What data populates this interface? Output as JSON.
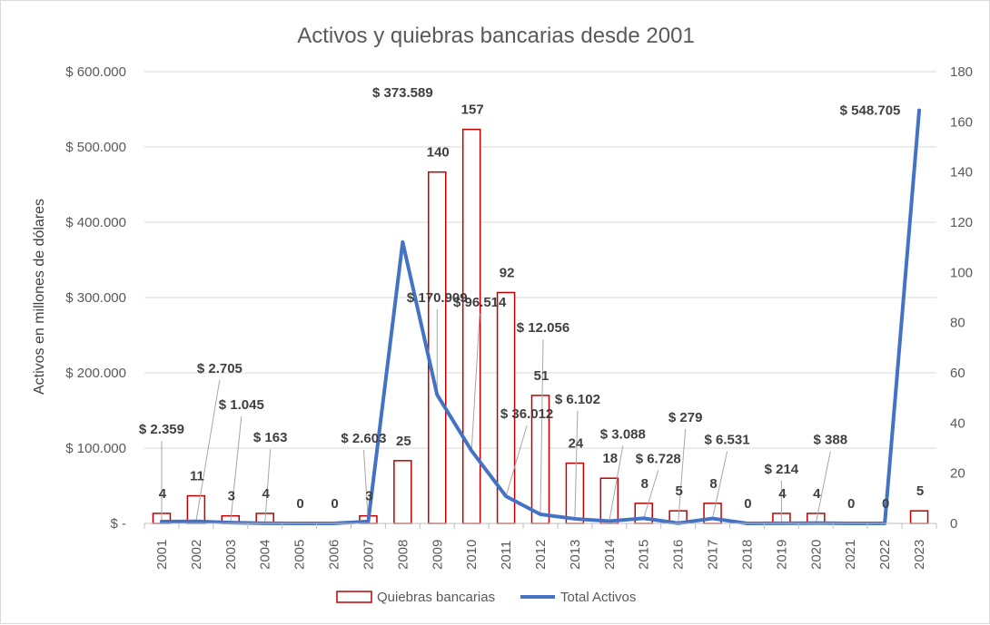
{
  "chart_data": {
    "type": "bar",
    "title": "Activos y quiebras bancarias desde 2001",
    "ylabel": "Activos en millones de dólares",
    "y2label": "",
    "xlabel": "",
    "categories": [
      "2001",
      "2002",
      "2003",
      "2004",
      "2005",
      "2006",
      "2007",
      "2008",
      "2009",
      "2010",
      "2011",
      "2012",
      "2013",
      "2014",
      "2015",
      "2016",
      "2017",
      "2018",
      "2019",
      "2020",
      "2021",
      "2022",
      "2023"
    ],
    "ylim": [
      0,
      600000
    ],
    "y_ticks": [
      "$ -",
      "$ 100.000",
      "$ 200.000",
      "$ 300.000",
      "$ 400.000",
      "$ 500.000",
      "$ 600.000"
    ],
    "y2lim": [
      0,
      180
    ],
    "y2_ticks": [
      "0",
      "20",
      "40",
      "60",
      "80",
      "100",
      "120",
      "140",
      "160",
      "180"
    ],
    "grid": true,
    "legend_position": "bottom",
    "series": [
      {
        "name": "Quiebras bancarias",
        "type": "bar",
        "axis": "right",
        "color": "#C00000",
        "values": [
          4,
          11,
          3,
          4,
          0,
          0,
          3,
          25,
          140,
          157,
          92,
          51,
          24,
          18,
          8,
          5,
          8,
          0,
          4,
          4,
          0,
          0,
          5
        ],
        "labels": [
          "4",
          "11",
          "3",
          "4",
          "0",
          "0",
          "3",
          "25",
          "140",
          "157",
          "92",
          "51",
          "24",
          "18",
          "8",
          "5",
          "8",
          "0",
          "4",
          "4",
          "0",
          "0",
          "5"
        ]
      },
      {
        "name": "Total Activos",
        "type": "line",
        "axis": "left",
        "color": "#4472C4",
        "values": [
          2359,
          2705,
          1045,
          163,
          0,
          0,
          2603,
          373589,
          170909,
          96514,
          36012,
          12056,
          6102,
          3088,
          6728,
          279,
          6531,
          0,
          214,
          388,
          0,
          0,
          548705
        ],
        "labels": [
          "$ 2.359",
          "$ 2.705",
          "$ 1.045",
          "$ 163",
          "",
          "",
          "$ 2.603",
          "$ 373.589",
          "$ 170.909",
          "$ 96.514",
          "$ 36.012",
          "$ 12.056",
          "$ 6.102",
          "$ 3.088",
          "$ 6.728",
          "$ 279",
          "$ 6.531",
          "",
          "$ 214",
          "$ 388",
          "",
          "",
          "$ 548.705"
        ]
      }
    ]
  }
}
